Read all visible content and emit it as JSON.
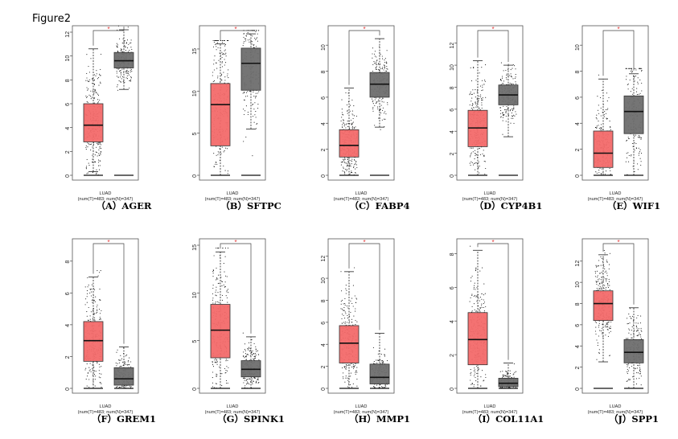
{
  "figure_label": "Figure2",
  "group_label": "LUAD",
  "sample_label": "(num(T)=483; num(N)=347)",
  "significance_mark": "*",
  "colors": {
    "tumor": "#f36a6a",
    "normal": "#6e6e6e",
    "star": "#e03030"
  },
  "chart_data": [
    {
      "type": "box",
      "title": "",
      "caption": "（A）AGER",
      "ylim": [
        0,
        12
      ],
      "yticks": [
        0,
        2,
        4,
        6,
        8,
        10,
        12
      ],
      "series": [
        {
          "name": "",
          "q1": 2.8,
          "median": 4.2,
          "q3": 6.0,
          "whisker_low": 0.3,
          "whisker_high": 10.6
        },
        {
          "name": "",
          "q1": 9.0,
          "median": 9.6,
          "q3": 10.3,
          "whisker_low": 7.2,
          "whisker_high": 12.2
        }
      ]
    },
    {
      "type": "box",
      "title": "",
      "caption": "（B）SFTPC",
      "ylim": [
        0,
        17
      ],
      "yticks": [
        0,
        5,
        10,
        15
      ],
      "series": [
        {
          "name": "",
          "q1": 3.5,
          "median": 8.4,
          "q3": 10.9,
          "whisker_low": 0.0,
          "whisker_high": 15.6
        },
        {
          "name": "",
          "q1": 10.1,
          "median": 13.3,
          "q3": 15.1,
          "whisker_low": 5.5,
          "whisker_high": 16.8
        }
      ]
    },
    {
      "type": "box",
      "title": "",
      "caption": "（C）FABP4",
      "ylim": [
        0,
        11
      ],
      "yticks": [
        0,
        2,
        4,
        6,
        8,
        10
      ],
      "series": [
        {
          "name": "",
          "q1": 1.4,
          "median": 2.3,
          "q3": 3.5,
          "whisker_low": 0.0,
          "whisker_high": 6.7
        },
        {
          "name": "",
          "q1": 6.0,
          "median": 7.0,
          "q3": 7.9,
          "whisker_low": 3.7,
          "whisker_high": 10.5
        }
      ]
    },
    {
      "type": "box",
      "title": "",
      "caption": "（D）CYP4B1",
      "ylim": [
        0,
        13
      ],
      "yticks": [
        0,
        2,
        4,
        6,
        8,
        10,
        12
      ],
      "series": [
        {
          "name": "",
          "q1": 2.6,
          "median": 4.3,
          "q3": 5.9,
          "whisker_low": 0.0,
          "whisker_high": 10.4
        },
        {
          "name": "",
          "q1": 6.4,
          "median": 7.3,
          "q3": 8.2,
          "whisker_low": 3.5,
          "whisker_high": 10.0
        }
      ]
    },
    {
      "type": "box",
      "title": "",
      "caption": "（E）WIF1",
      "ylim": [
        0,
        11
      ],
      "yticks": [
        0,
        2,
        4,
        6,
        8,
        10
      ],
      "series": [
        {
          "name": "",
          "q1": 0.6,
          "median": 1.7,
          "q3": 3.4,
          "whisker_low": 0.0,
          "whisker_high": 7.4
        },
        {
          "name": "",
          "q1": 3.2,
          "median": 4.9,
          "q3": 6.1,
          "whisker_low": 0.0,
          "whisker_high": 7.8
        }
      ]
    },
    {
      "type": "box",
      "title": "",
      "caption": "（F）GREM1",
      "ylim": [
        0,
        9
      ],
      "yticks": [
        0,
        2,
        4,
        6,
        8
      ],
      "series": [
        {
          "name": "",
          "q1": 1.7,
          "median": 3.0,
          "q3": 4.2,
          "whisker_low": 0.0,
          "whisker_high": 7.0
        },
        {
          "name": "",
          "q1": 0.2,
          "median": 0.6,
          "q3": 1.3,
          "whisker_low": 0.0,
          "whisker_high": 2.6
        }
      ]
    },
    {
      "type": "box",
      "title": "",
      "caption": "（G）SPINK1",
      "ylim": [
        0,
        15
      ],
      "yticks": [
        0,
        5,
        10,
        15
      ],
      "series": [
        {
          "name": "",
          "q1": 3.2,
          "median": 6.1,
          "q3": 8.8,
          "whisker_low": 0.0,
          "whisker_high": 14.3
        },
        {
          "name": "",
          "q1": 1.2,
          "median": 2.0,
          "q3": 2.9,
          "whisker_low": 0.0,
          "whisker_high": 5.4
        }
      ]
    },
    {
      "type": "box",
      "title": "",
      "caption": "（H）MMP1",
      "ylim": [
        0,
        13
      ],
      "yticks": [
        0,
        2,
        4,
        6,
        8,
        10,
        12
      ],
      "series": [
        {
          "name": "",
          "q1": 2.3,
          "median": 4.1,
          "q3": 5.7,
          "whisker_low": 0.0,
          "whisker_high": 10.6
        },
        {
          "name": "",
          "q1": 0.4,
          "median": 1.0,
          "q3": 2.2,
          "whisker_low": 0.0,
          "whisker_high": 5.0
        }
      ]
    },
    {
      "type": "box",
      "title": "",
      "caption": "（I）COL11A1",
      "ylim": [
        0,
        8.5
      ],
      "yticks": [
        0,
        2,
        4,
        6,
        8
      ],
      "series": [
        {
          "name": "",
          "q1": 1.4,
          "median": 2.9,
          "q3": 4.5,
          "whisker_low": 0.0,
          "whisker_high": 8.2
        },
        {
          "name": "",
          "q1": 0.1,
          "median": 0.3,
          "q3": 0.6,
          "whisker_low": 0.0,
          "whisker_high": 1.5
        }
      ]
    },
    {
      "type": "box",
      "title": "",
      "caption": "（J）SPP1",
      "ylim": [
        0,
        13.5
      ],
      "yticks": [
        0,
        2,
        4,
        6,
        8,
        10,
        12
      ],
      "series": [
        {
          "name": "",
          "q1": 6.4,
          "median": 8.0,
          "q3": 9.2,
          "whisker_low": 2.5,
          "whisker_high": 12.6
        },
        {
          "name": "",
          "q1": 2.4,
          "median": 3.4,
          "q3": 4.6,
          "whisker_low": 0.0,
          "whisker_high": 7.6
        }
      ]
    }
  ]
}
